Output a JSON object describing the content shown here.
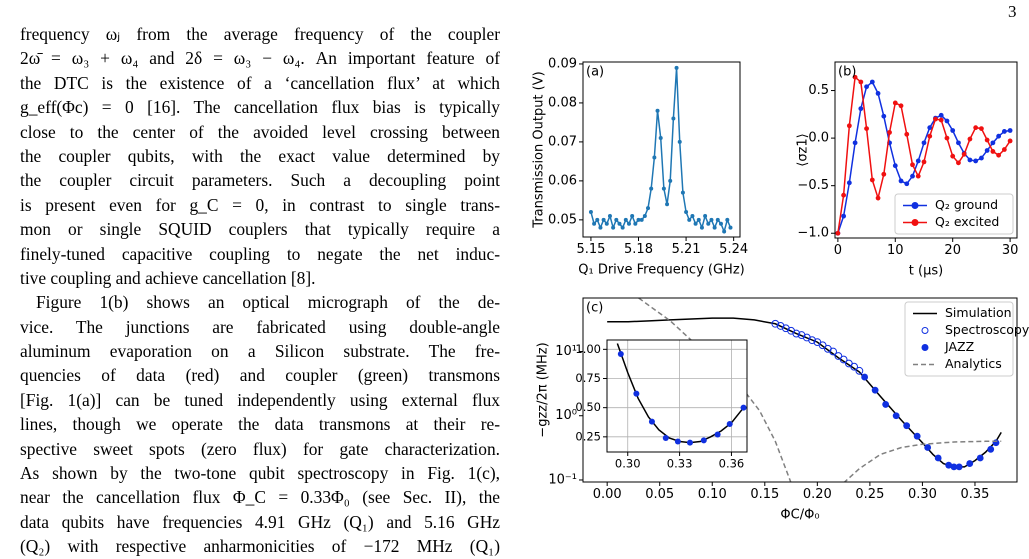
{
  "page_number": "3",
  "text": {
    "lines": [
      "frequency ωⱼ from the average frequency of the coupler",
      "2ω̄ = ω₃ + ω₄ and 2δ = ω₃ − ω₄. An important feature of",
      "the DTC is the existence of a ‘cancellation flux’ at which",
      "g_eff(Φc) = 0 [16]. The cancellation flux bias is typically",
      "close to the center of the avoided level crossing between",
      "the coupler qubits, with the exact value determined by",
      "the coupler circuit parameters. Such a decoupling point",
      "is present even for g_C = 0, in contrast to single trans-",
      "mon or single SQUID couplers that typically require a",
      "finely-tuned capacitive coupling to negate the net induc-",
      "tive coupling and achieve cancellation [8].",
      "Figure 1(b) shows an optical micrograph of the de-",
      "vice. The junctions are fabricated using double-angle",
      "aluminum evaporation on a Silicon substrate. The fre-",
      "quencies of data (red) and coupler (green) transmons",
      "[Fig. 1(a)] can be tuned independently using external flux",
      "lines, though we operate the data transmons at their re-",
      "spective sweet spots (zero flux) for gate characterization.",
      "As shown by the two-tone qubit spectroscopy in Fig. 1(c),",
      "near the cancellation flux Φ_C = 0.33Φ₀ (see Sec. II), the",
      "data qubits have frequencies 4.91 GHz (Q₁) and 5.16 GHz",
      "(Q₂) with respective anharmonicities of −172 MHz (Q₁)"
    ]
  },
  "chart_data": [
    {
      "type": "line",
      "label": "(a)",
      "xlabel": "Q₁ Drive Frequency (GHz)",
      "ylabel": "Transmission Output (V)",
      "xlim": [
        5.145,
        5.244
      ],
      "ylim": [
        0.0456,
        0.0905
      ],
      "xticks": [
        5.15,
        5.18,
        5.21,
        5.24
      ],
      "yticks": [
        0.05,
        0.06,
        0.07,
        0.08,
        0.09
      ],
      "series": [
        {
          "color": "#1f77b4",
          "mode": "lines+markers",
          "marker": "filled",
          "x": [
            5.15,
            5.152,
            5.154,
            5.156,
            5.158,
            5.16,
            5.162,
            5.164,
            5.166,
            5.168,
            5.17,
            5.172,
            5.174,
            5.176,
            5.178,
            5.18,
            5.182,
            5.184,
            5.186,
            5.188,
            5.19,
            5.192,
            5.194,
            5.196,
            5.198,
            5.2,
            5.202,
            5.204,
            5.206,
            5.208,
            5.21,
            5.212,
            5.214,
            5.216,
            5.218,
            5.22,
            5.222,
            5.224,
            5.226,
            5.228,
            5.23,
            5.232,
            5.234,
            5.236,
            5.238
          ],
          "values": [
            0.052,
            0.049,
            0.05,
            0.048,
            0.05,
            0.049,
            0.051,
            0.048,
            0.05,
            0.049,
            0.048,
            0.05,
            0.049,
            0.051,
            0.049,
            0.05,
            0.05,
            0.051,
            0.053,
            0.058,
            0.066,
            0.078,
            0.071,
            0.058,
            0.054,
            0.06,
            0.076,
            0.089,
            0.07,
            0.057,
            0.052,
            0.05,
            0.051,
            0.049,
            0.05,
            0.048,
            0.051,
            0.049,
            0.05,
            0.048,
            0.05,
            0.049,
            0.047,
            0.05,
            0.048
          ]
        }
      ]
    },
    {
      "type": "line",
      "label": "(b)",
      "xlabel": "t (μs)",
      "ylabel": "⟨σz1⟩",
      "xlim": [
        -0.5,
        31.2
      ],
      "ylim": [
        -1.05,
        0.8
      ],
      "xticks": [
        0,
        10,
        20,
        30
      ],
      "yticks": [
        {
          "value": 0.5,
          "label": "0.5"
        },
        {
          "value": 0,
          "label": "0.0"
        },
        {
          "value": -0.5,
          "label": "−0.5"
        },
        {
          "value": -1,
          "label": "−1.0"
        }
      ],
      "legend": "lower right",
      "series": [
        {
          "name": "Q₂ ground",
          "color": "#1030e0",
          "mode": "lines+markers",
          "marker": "filled",
          "x": [
            0,
            1,
            2,
            3,
            4,
            5,
            6,
            7,
            8,
            9,
            10,
            11,
            12,
            13,
            14,
            15,
            16,
            17,
            18,
            19,
            20,
            21,
            22,
            23,
            24,
            25,
            26,
            27,
            28,
            29,
            30
          ],
          "values": [
            -1.0,
            -0.82,
            -0.47,
            -0.05,
            0.31,
            0.54,
            0.59,
            0.47,
            0.23,
            -0.05,
            -0.29,
            -0.45,
            -0.48,
            -0.4,
            -0.24,
            -0.05,
            0.11,
            0.21,
            0.24,
            0.18,
            0.08,
            -0.05,
            -0.16,
            -0.23,
            -0.24,
            -0.21,
            -0.13,
            -0.05,
            0.02,
            0.07,
            0.08
          ]
        },
        {
          "name": "Q₂ excited",
          "color": "#f01010",
          "mode": "lines+markers",
          "marker": "filled",
          "x": [
            0,
            1,
            2,
            3,
            4,
            5,
            6,
            7,
            8,
            9,
            10,
            11,
            12,
            13,
            14,
            15,
            16,
            17,
            18,
            19,
            20,
            21,
            22,
            23,
            24,
            25,
            26,
            27,
            28,
            29,
            30
          ],
          "values": [
            -1.0,
            -0.6,
            0.13,
            0.64,
            0.59,
            0.1,
            -0.44,
            -0.63,
            -0.38,
            0.06,
            0.37,
            0.34,
            0.04,
            -0.28,
            -0.4,
            -0.25,
            0.02,
            0.2,
            0.19,
            0.0,
            -0.19,
            -0.26,
            -0.17,
            -0.01,
            0.11,
            0.1,
            -0.02,
            -0.14,
            -0.18,
            -0.12,
            -0.03
          ]
        }
      ]
    },
    {
      "type": "line",
      "label": "(c)",
      "xlabel": "ΦC/Φ₀",
      "ylabel": "−gzz/2π (MHz)",
      "ylog": true,
      "xlim": [
        -0.023,
        0.39
      ],
      "ylim": [
        0.093,
        68
      ],
      "xticks": [
        {
          "value": 0,
          "label": "0.00"
        },
        0.05,
        {
          "value": 0.1,
          "label": "0.10"
        },
        0.15,
        {
          "value": 0.2,
          "label": "0.20"
        },
        0.25,
        {
          "value": 0.3,
          "label": "0.30"
        },
        0.35
      ],
      "yticks": [
        {
          "value": 10,
          "label": "10¹"
        },
        {
          "value": 1,
          "label": "10⁰"
        },
        {
          "value": 0.1,
          "label": "10⁻¹"
        }
      ],
      "legend": "upper right",
      "series": [
        {
          "name": "Simulation",
          "color": "#000000",
          "mode": "lines",
          "x": [
            0,
            0.02,
            0.04,
            0.06,
            0.08,
            0.1,
            0.12,
            0.14,
            0.16,
            0.18,
            0.2,
            0.22,
            0.24,
            0.26,
            0.28,
            0.3,
            0.31,
            0.32,
            0.33,
            0.34,
            0.35,
            0.36,
            0.37,
            0.375
          ],
          "values": [
            29,
            29,
            30,
            31,
            32,
            33,
            33,
            31,
            27,
            19,
            14,
            8,
            4.8,
            2,
            0.85,
            0.38,
            0.25,
            0.18,
            0.16,
            0.16,
            0.2,
            0.27,
            0.4,
            0.55
          ]
        },
        {
          "name": "Spectroscopy",
          "color": "#1030e0",
          "mode": "markers",
          "marker": "open",
          "x": [
            0.16,
            0.165,
            0.17,
            0.175,
            0.18,
            0.185,
            0.19,
            0.195,
            0.2,
            0.205,
            0.21,
            0.215,
            0.22,
            0.225,
            0.23,
            0.235,
            0.24
          ],
          "values": [
            27,
            25,
            23,
            21,
            19,
            18,
            16.5,
            15,
            14,
            12.5,
            11,
            10,
            8.5,
            7.5,
            6.5,
            5.8,
            5
          ]
        },
        {
          "name": "JAZZ",
          "color": "#1030e0",
          "mode": "markers",
          "marker": "filled",
          "x": [
            0.245,
            0.255,
            0.265,
            0.275,
            0.285,
            0.295,
            0.305,
            0.315,
            0.325,
            0.33,
            0.335,
            0.345,
            0.355,
            0.365,
            0.37
          ],
          "values": [
            4,
            2.5,
            1.5,
            1.0,
            0.7,
            0.48,
            0.32,
            0.22,
            0.17,
            0.16,
            0.16,
            0.18,
            0.22,
            0.3,
            0.38
          ]
        },
        {
          "name": "Analytics",
          "color": "#808080",
          "mode": "lines",
          "dash": true,
          "x": [
            0.03,
            0.045,
            0.06,
            0.08,
            0.1,
            0.115,
            0.13,
            0.145,
            0.16,
            0.175,
            0.2,
            0.225,
            0.24,
            0.26,
            0.28,
            0.3,
            0.33,
            0.36,
            0.375
          ],
          "values": [
            68,
            45,
            30,
            15,
            8,
            4.5,
            2.5,
            1.2,
            0.4,
            0.09,
            null,
            0.09,
            0.15,
            0.25,
            0.32,
            0.36,
            0.39,
            0.4,
            0.4
          ]
        }
      ]
    },
    {
      "type": "line",
      "inset": true,
      "grid": true,
      "xlim": [
        0.288,
        0.369
      ],
      "ylim": [
        0.12,
        1.08
      ],
      "xticks": [
        {
          "value": 0.3,
          "label": "0.30"
        },
        0.33,
        0.36
      ],
      "yticks": [
        {
          "value": 1,
          "label": "1.00"
        },
        0.75,
        {
          "value": 0.5,
          "label": "0.50"
        },
        0.25
      ],
      "series": [
        {
          "color": "#000000",
          "mode": "lines",
          "x": [
            0.294,
            0.3,
            0.306,
            0.312,
            0.318,
            0.324,
            0.33,
            0.336,
            0.342,
            0.348,
            0.354,
            0.36,
            0.367
          ],
          "values": [
            1.05,
            0.8,
            0.58,
            0.42,
            0.31,
            0.24,
            0.21,
            0.2,
            0.21,
            0.25,
            0.3,
            0.37,
            0.5
          ]
        },
        {
          "color": "#1030e0",
          "mode": "markers",
          "marker": "filled",
          "x": [
            0.296,
            0.305,
            0.314,
            0.322,
            0.329,
            0.336,
            0.344,
            0.352,
            0.359,
            0.367
          ],
          "values": [
            0.96,
            0.62,
            0.38,
            0.24,
            0.21,
            0.2,
            0.22,
            0.27,
            0.36,
            0.5
          ]
        }
      ]
    }
  ]
}
